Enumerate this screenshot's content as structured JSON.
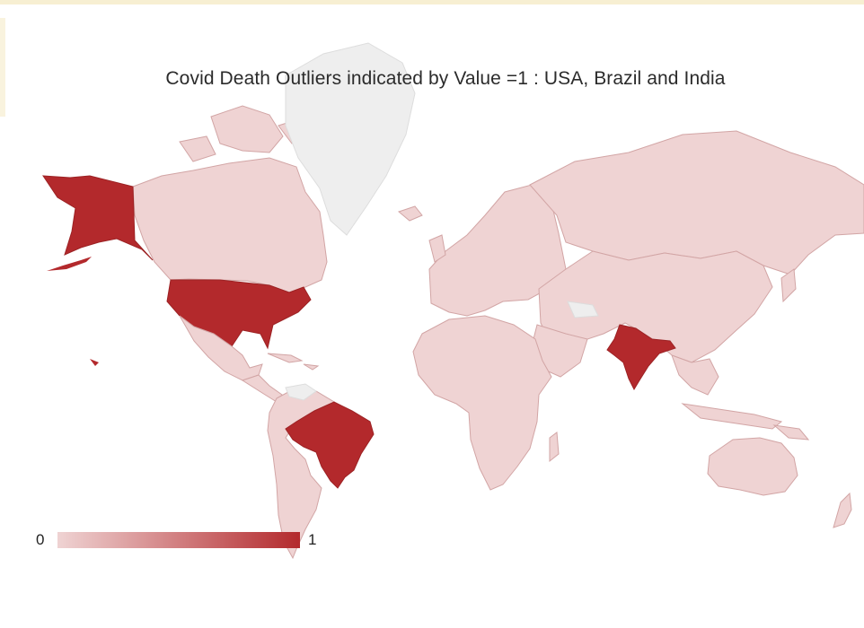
{
  "map": {
    "title": "Covid Death Outliers indicated by Value =1  : USA, Brazil and India",
    "type": "choropleth world map",
    "colors": {
      "low": "#efd3d3",
      "high": "#b3292c",
      "no_data": "#eeeeee",
      "border": "#d2a5a5"
    },
    "legend": {
      "min_label": "0",
      "max_label": "1",
      "placement": "bottom-left"
    },
    "highlighted_countries": [
      {
        "name": "USA",
        "value": 1
      },
      {
        "name": "Brazil",
        "value": 1
      },
      {
        "name": "India",
        "value": 1
      }
    ]
  }
}
